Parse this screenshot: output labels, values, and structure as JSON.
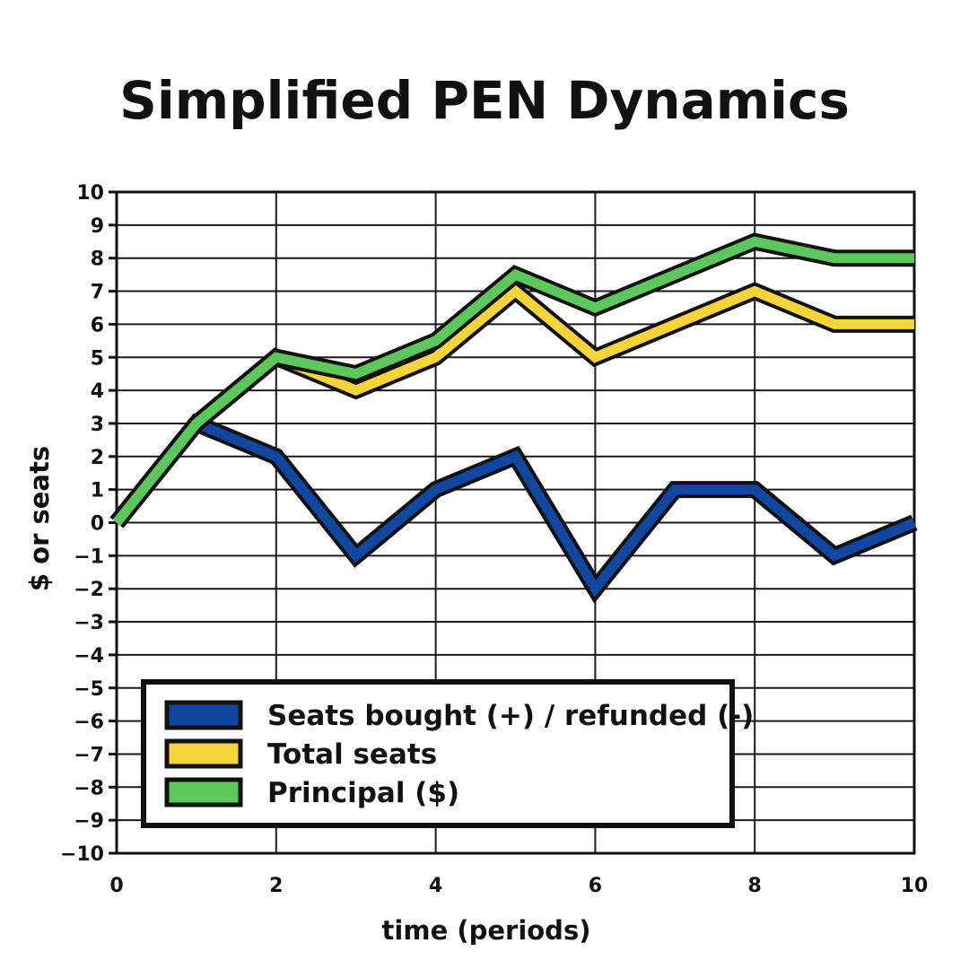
{
  "chart_data": {
    "type": "line",
    "title": "Simplified PEN Dynamics",
    "xlabel": "time (periods)",
    "ylabel": "$ or seats",
    "xlim": [
      0,
      10
    ],
    "ylim": [
      -10,
      10
    ],
    "x_ticks": [
      "0",
      "2",
      "4",
      "6",
      "8",
      "10"
    ],
    "y_ticks": [
      "10",
      "9",
      "8",
      "7",
      "6",
      "5",
      "4",
      "3",
      "2",
      "1",
      "0",
      "−1",
      "−2",
      "−3",
      "−4",
      "−5",
      "−6",
      "−7",
      "−8",
      "−9",
      "−10"
    ],
    "grid": true,
    "legend_position": "bottom-left",
    "x": [
      0,
      1,
      2,
      3,
      4,
      5,
      6,
      7,
      8,
      9,
      10
    ],
    "series": [
      {
        "name": "Seats bought (+) / refunded (-)",
        "color": "#0f47a1",
        "values": [
          0,
          3,
          2,
          -1,
          1,
          2,
          -2,
          1,
          1,
          -1,
          0
        ]
      },
      {
        "name": "Total seats",
        "color": "#f7d43a",
        "values": [
          0,
          3,
          5,
          4,
          5,
          7,
          5,
          6,
          7,
          6,
          6
        ]
      },
      {
        "name": "Principal ($)",
        "color": "#5cc85c",
        "values": [
          0,
          3,
          5,
          4.5,
          5.5,
          7.5,
          6.5,
          7.5,
          8.5,
          8,
          8
        ]
      }
    ]
  }
}
